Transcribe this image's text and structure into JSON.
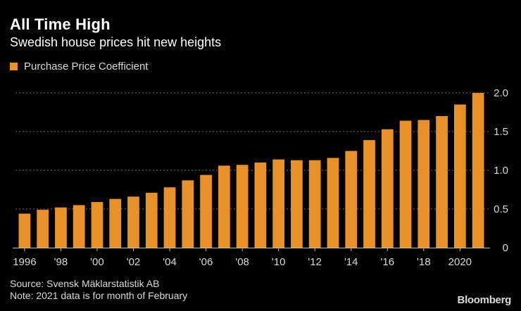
{
  "title": "All Time High",
  "subtitle": "Swedish house prices hit new heights",
  "legend": {
    "label": "Purchase Price Coefficient",
    "color": "#e8912a"
  },
  "source": "Source: Svensk Mäklarstatistik AB",
  "note": "Note: 2021 data is for month of February",
  "brand": "Bloomberg",
  "colors": {
    "background": "#000000",
    "bar": "#e8912a",
    "grid": "#6f6f6f",
    "axis_text": "#d9d9d9"
  },
  "chart_data": {
    "type": "bar",
    "title": "All Time High",
    "subtitle": "Swedish house prices hit new heights",
    "categories": [
      "1996",
      "1997",
      "1998",
      "1999",
      "2000",
      "2001",
      "2002",
      "2003",
      "2004",
      "2005",
      "2006",
      "2007",
      "2008",
      "2009",
      "2010",
      "2011",
      "2012",
      "2013",
      "2014",
      "2015",
      "2016",
      "2017",
      "2018",
      "2019",
      "2020",
      "2021"
    ],
    "x_tick_labels": [
      "1996",
      "'98",
      "'00",
      "'02",
      "'04",
      "'06",
      "'08",
      "'10",
      "'12",
      "'14",
      "'16",
      "'18",
      "2020"
    ],
    "x_tick_categories": [
      "1996",
      "1998",
      "2000",
      "2002",
      "2004",
      "2006",
      "2008",
      "2010",
      "2012",
      "2014",
      "2016",
      "2018",
      "2020"
    ],
    "series": [
      {
        "name": "Purchase Price Coefficient",
        "values": [
          0.44,
          0.49,
          0.52,
          0.55,
          0.59,
          0.63,
          0.66,
          0.71,
          0.78,
          0.87,
          0.94,
          1.06,
          1.07,
          1.1,
          1.14,
          1.13,
          1.13,
          1.16,
          1.25,
          1.39,
          1.53,
          1.64,
          1.65,
          1.7,
          1.85,
          2.0
        ]
      }
    ],
    "ylim": [
      0,
      2.0
    ],
    "y_ticks": [
      0,
      0.5,
      1.0,
      1.5,
      2.0
    ],
    "y_tick_labels": [
      "0",
      "0.5",
      "1.0",
      "1.5",
      "2.0"
    ],
    "y_axis_side": "right",
    "grid": true,
    "legend_position": "top-left"
  }
}
